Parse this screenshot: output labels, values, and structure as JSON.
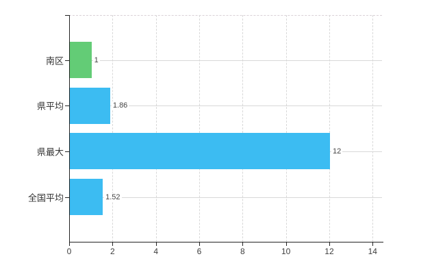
{
  "chart_data": {
    "type": "bar",
    "orientation": "horizontal",
    "title": "",
    "xlabel": "",
    "ylabel": "",
    "categories": [
      "南区",
      "県平均",
      "県最大",
      "全国平均"
    ],
    "values": [
      1,
      1.86,
      12,
      1.52
    ],
    "value_labels": [
      "1",
      "1.86",
      "12",
      "1.52"
    ],
    "bar_colors": [
      "#63cc76",
      "#3cbcf2",
      "#3cbcf2",
      "#3cbcf2"
    ],
    "x_ticks": [
      0,
      2,
      4,
      6,
      8,
      10,
      12,
      14
    ],
    "xlim": [
      0,
      14
    ],
    "grid": true,
    "legend": false
  },
  "colors": {
    "bar_green": "#63cc76",
    "bar_blue": "#3cbcf2",
    "gridline": "#d8d8d8",
    "axis": "#222222",
    "text": "#3d3d3d",
    "background": "#ffffff"
  }
}
